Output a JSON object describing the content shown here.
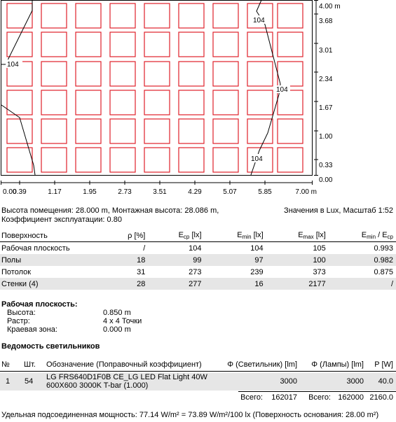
{
  "plan": {
    "x_ticks": [
      "0.00",
      "0.39",
      "1.17",
      "1.95",
      "2.73",
      "3.51",
      "4.29",
      "5.07",
      "5.85",
      "7.00 m"
    ],
    "y_ticks": [
      "4.00 m",
      "3.68",
      "3.01",
      "2.34",
      "1.67",
      "1.00",
      "0.33",
      "0.00"
    ],
    "isoline_labels": [
      "104",
      "104",
      "104",
      "104"
    ],
    "luminaire_color": "#e0202a"
  },
  "info": {
    "line1": "Высота помещения: 28.000 m, Монтажная высота: 28.086 m,",
    "line2": "Коэффициент эксплуатации: 0.80",
    "units": "Значения в Lux, Масштаб 1:52"
  },
  "surfaces": {
    "headers": {
      "surface": "Поверхность",
      "rho": "ρ [%]",
      "e": "E",
      "e_sub": "ср",
      "unit": "[lx]",
      "emin_sub": "min",
      "emax_sub": "max",
      "slash": " / "
    },
    "rows": [
      {
        "name": "Рабочая плоскость",
        "rho": "/",
        "eav": "104",
        "emin": "104",
        "emax": "105",
        "ratio": "0.993"
      },
      {
        "name": "Полы",
        "rho": "18",
        "eav": "99",
        "emin": "97",
        "emax": "100",
        "ratio": "0.982"
      },
      {
        "name": "Потолок",
        "rho": "31",
        "eav": "273",
        "emin": "239",
        "emax": "373",
        "ratio": "0.875"
      },
      {
        "name": "Стенки (4)",
        "rho": "28",
        "eav": "277",
        "emin": "16",
        "emax": "2177",
        "ratio": "/"
      }
    ]
  },
  "workplane": {
    "title": "Рабочая плоскость:",
    "items": [
      {
        "label": "Высота:",
        "value": "0.850 m"
      },
      {
        "label": "Растр:",
        "value": "4 x 4 Точки"
      },
      {
        "label": "Краевая зона:",
        "value": "0.000 m"
      }
    ]
  },
  "luminaires": {
    "title": "Ведомость светильников",
    "headers": {
      "no": "№",
      "qty": "Шт.",
      "name": "Обозначение (Поправочный коэффициент)",
      "flux_lum": "Φ (Светильник) [lm]",
      "flux_lamp": "Φ (Лампы) [lm]",
      "power": "P [W]"
    },
    "rows": [
      {
        "no": "1",
        "qty": "54",
        "name_l1": "LG FRS640D1F0B CE_LG LED Flat Light 40W",
        "name_l2": "600X600 3000K T-bar (1.000)",
        "flux_lum": "3000",
        "flux_lamp": "3000",
        "power": "40.0"
      }
    ],
    "total_label": "Всего:",
    "total_flux_lum": "162017",
    "total_label2": "Всего:",
    "total_flux_lamp": "162000",
    "total_power": "2160.0"
  },
  "footer": "Удельная подсоединенная мощность: 77.14 W/m² = 73.89 W/m²/100 lx (Поверхность основания: 28.00 m²)"
}
